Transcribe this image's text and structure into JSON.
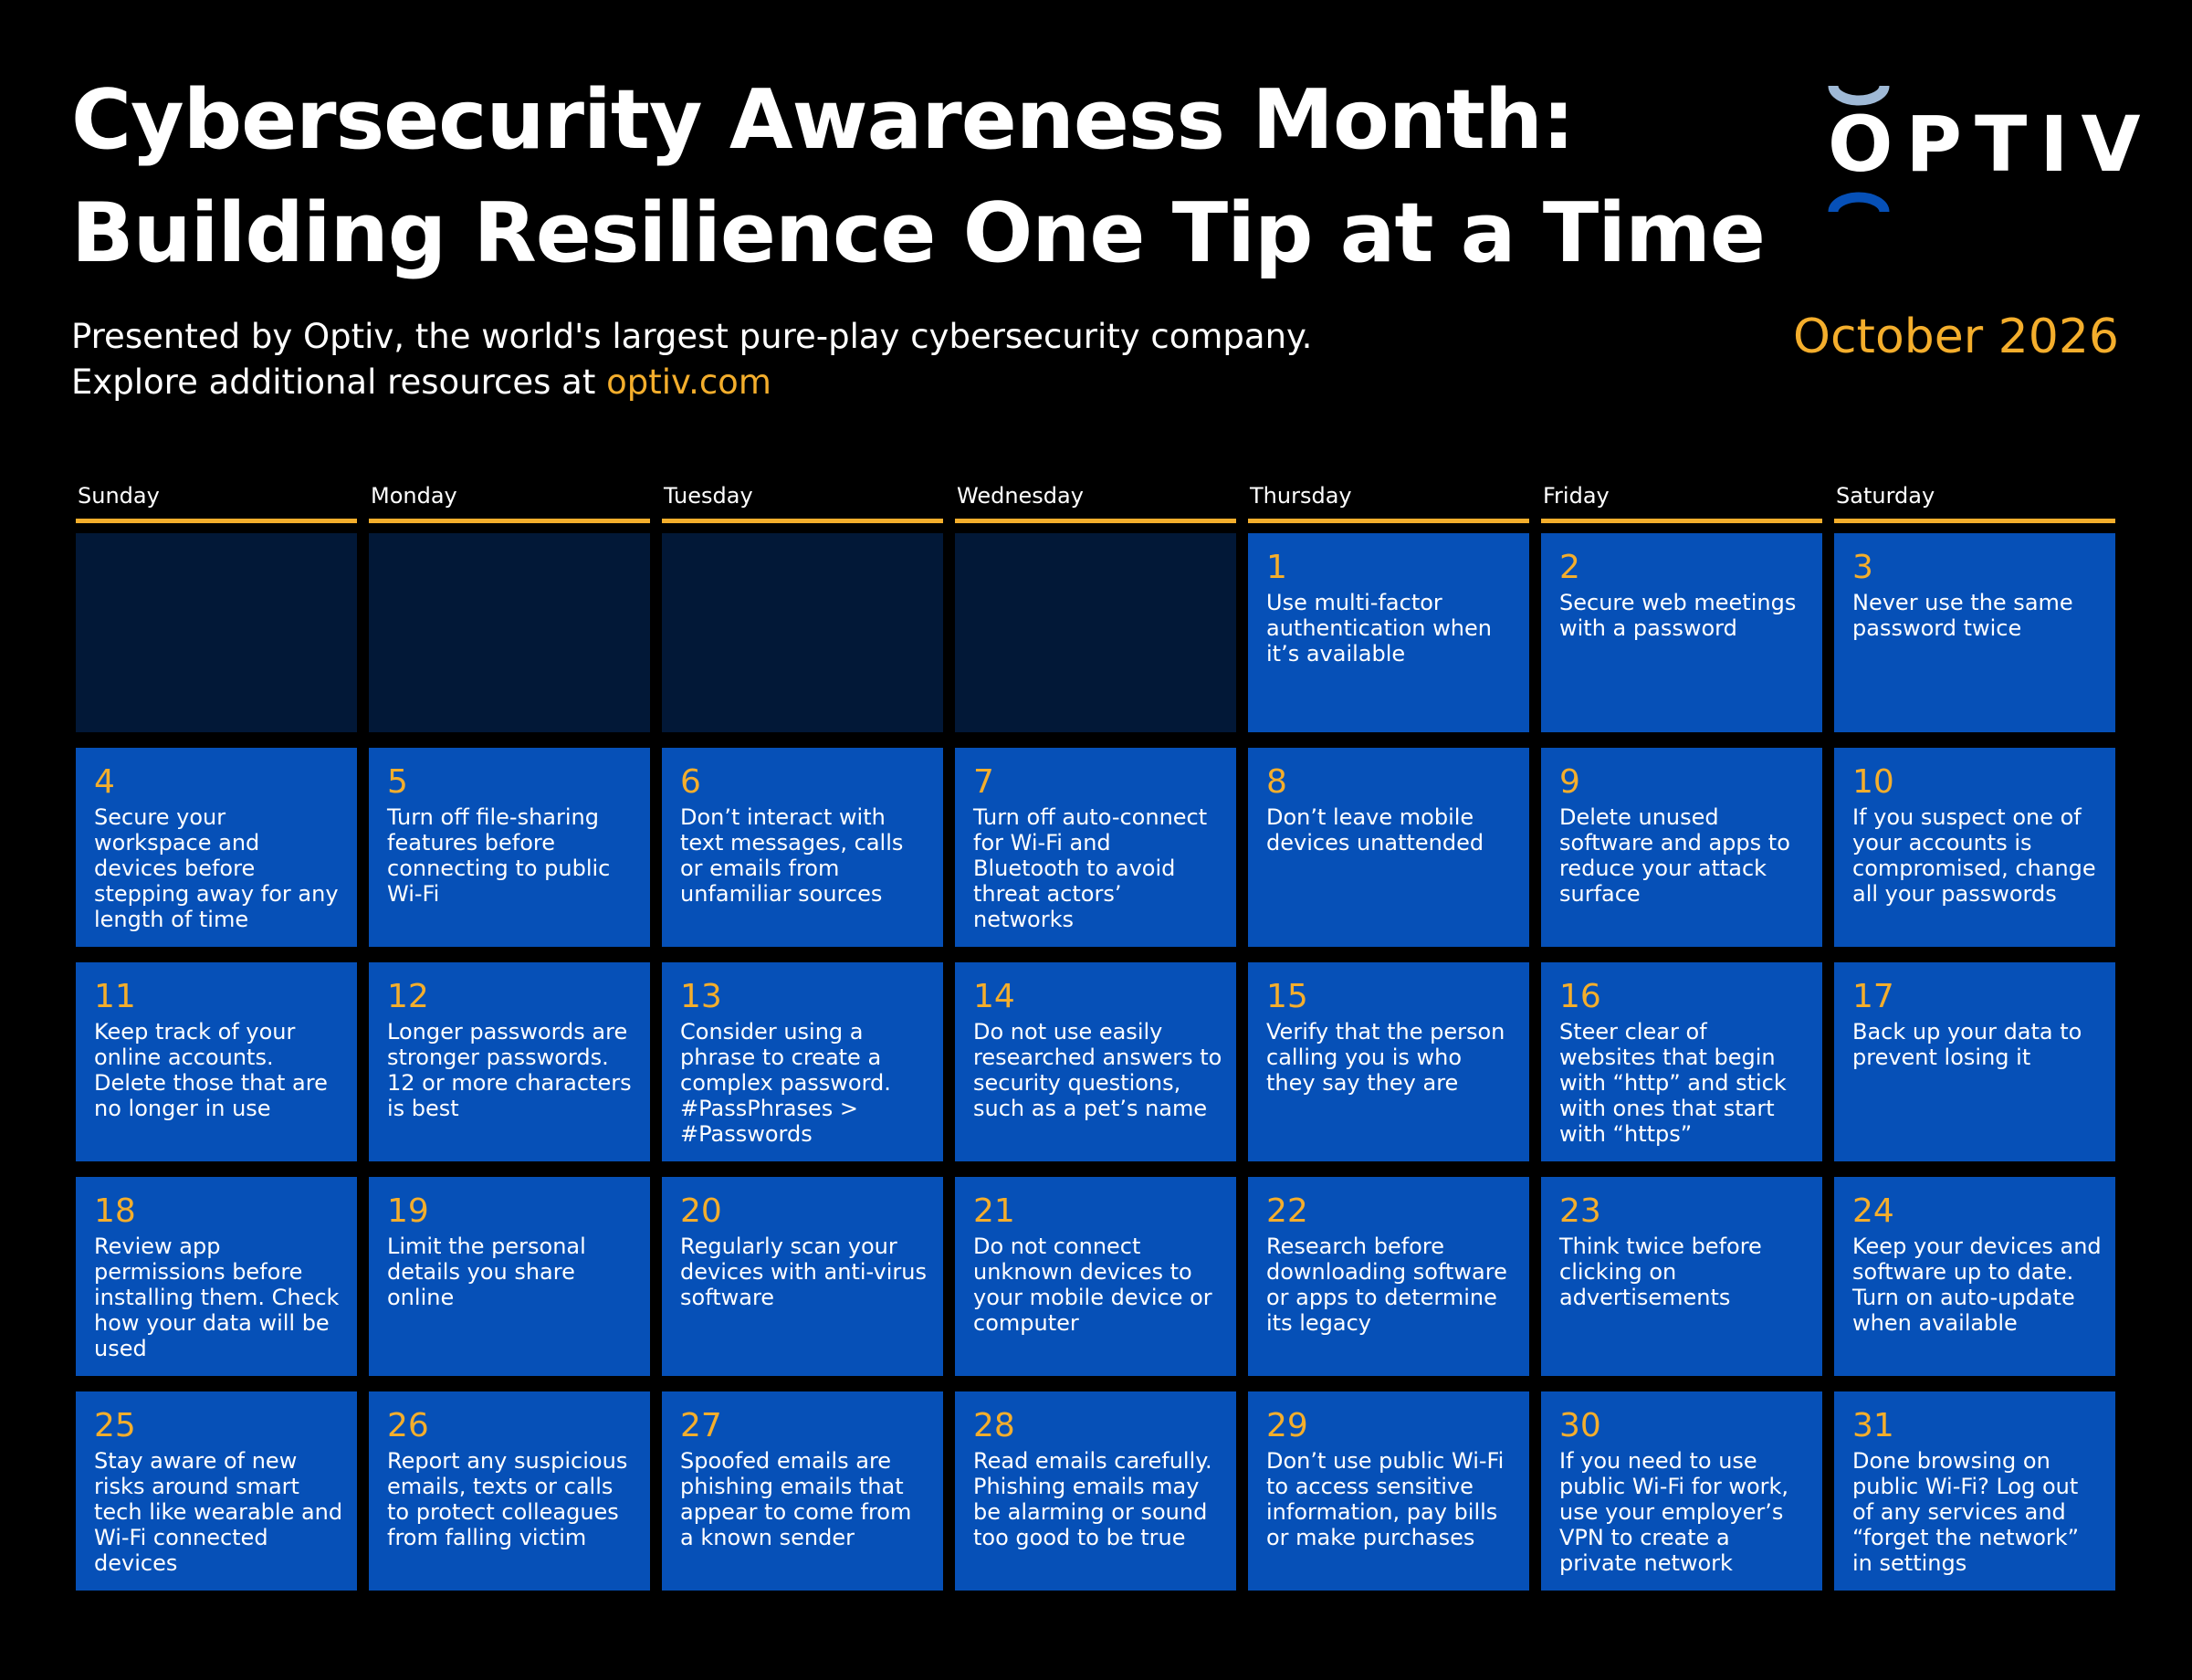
{
  "header": {
    "title_line1": "Cybersecurity Awareness Month:",
    "title_line2": "Building Resilience One Tip at a Time",
    "subtitle_line1": "Presented by Optiv, the world's largest pure-play cybersecurity company.",
    "subtitle_line2_prefix": "Explore additional resources at ",
    "subtitle_link": "optiv.com",
    "month": "October 2026"
  },
  "logo": {
    "text": "OPTIV",
    "reg": "®",
    "accent_color": "#9fb9d6",
    "accent_color_2": "#0650b7"
  },
  "colors": {
    "background": "#000000",
    "cell": "#0650b7",
    "empty_cell": "#021837",
    "accent": "#f4ae2c"
  },
  "weekdays": [
    "Sunday",
    "Monday",
    "Tuesday",
    "Wednesday",
    "Thursday",
    "Friday",
    "Saturday"
  ],
  "calendar": [
    {
      "day": "",
      "tip": ""
    },
    {
      "day": "",
      "tip": ""
    },
    {
      "day": "",
      "tip": ""
    },
    {
      "day": "",
      "tip": ""
    },
    {
      "day": "1",
      "tip": "Use multi-factor authentication when it’s available"
    },
    {
      "day": "2",
      "tip": "Secure web meetings with a password"
    },
    {
      "day": "3",
      "tip": "Never use the same password twice"
    },
    {
      "day": "4",
      "tip": "Secure your workspace and devices before stepping away for any length of time"
    },
    {
      "day": "5",
      "tip": "Turn off file-sharing features before connecting to public Wi-Fi"
    },
    {
      "day": "6",
      "tip": "Don’t interact with text messages, calls or emails from unfamiliar sources"
    },
    {
      "day": "7",
      "tip": "Turn off auto-connect for Wi-Fi and Bluetooth to avoid threat actors’ networks"
    },
    {
      "day": "8",
      "tip": "Don’t leave mobile devices unattended"
    },
    {
      "day": "9",
      "tip": "Delete unused software and apps to reduce your attack surface"
    },
    {
      "day": "10",
      "tip": "If you suspect one of your accounts is compromised, change all your passwords"
    },
    {
      "day": "11",
      "tip": "Keep track of your online accounts. Delete those that are no longer in use"
    },
    {
      "day": "12",
      "tip": "Longer passwords are stronger passwords. 12 or more characters is best"
    },
    {
      "day": "13",
      "tip": "Consider using a phrase to create a complex password. #PassPhrases > #Passwords"
    },
    {
      "day": "14",
      "tip": "Do not use easily researched answers to security questions, such as a pet’s name"
    },
    {
      "day": "15",
      "tip": "Verify that the person calling you is who they say they are"
    },
    {
      "day": "16",
      "tip": "Steer clear of websites that begin with “http” and stick with ones that start with “https”"
    },
    {
      "day": "17",
      "tip": "Back up your data to prevent losing it"
    },
    {
      "day": "18",
      "tip": "Review app permissions before installing them. Check how your data will be used"
    },
    {
      "day": "19",
      "tip": "Limit the personal details you share online"
    },
    {
      "day": "20",
      "tip": "Regularly scan your devices with anti-virus software"
    },
    {
      "day": "21",
      "tip": "Do not connect unknown devices to your mobile device or computer"
    },
    {
      "day": "22",
      "tip": "Research before downloading software or apps to determine its legacy"
    },
    {
      "day": "23",
      "tip": "Think twice before clicking on advertisements"
    },
    {
      "day": "24",
      "tip": "Keep your devices and software up to date. Turn on auto-update when available"
    },
    {
      "day": "25",
      "tip": "Stay aware of new risks around smart tech like wearable and Wi-Fi connected devices"
    },
    {
      "day": "26",
      "tip": "Report any suspicious emails, texts or calls to protect colleagues from falling victim"
    },
    {
      "day": "27",
      "tip": "Spoofed emails are phishing emails that appear to come from a known sender"
    },
    {
      "day": "28",
      "tip": "Read emails carefully. Phishing emails may be alarming or sound too good to be true"
    },
    {
      "day": "29",
      "tip": "Don’t use public Wi-Fi to access sensitive information, pay bills or make purchases"
    },
    {
      "day": "30",
      "tip": "If you need to use public Wi-Fi for work, use your employer’s VPN to create a private network"
    },
    {
      "day": "31",
      "tip": "Done browsing on public Wi-Fi? Log out of any services and “forget the network” in settings"
    }
  ]
}
